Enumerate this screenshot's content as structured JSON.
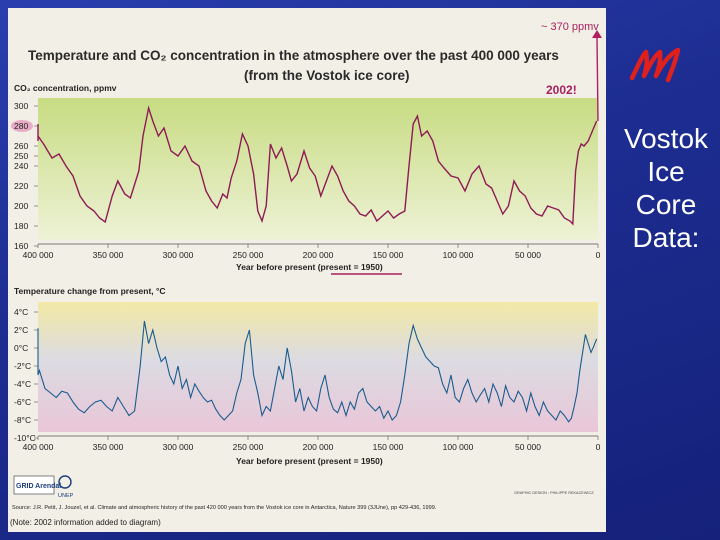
{
  "slide": {
    "title_lines": [
      "Vostok",
      "Ice",
      "Core",
      "Data:"
    ],
    "logo_icon": "red-m-logo-icon"
  },
  "figure": {
    "title_line1": "Temperature and CO₂ concentration in the atmosphere over the past 400 000 years",
    "title_line2": "(from the Vostok ice core)",
    "annotation_ppmv": "~ 370 ppmv",
    "annotation_2002": "2002!",
    "source_text": "Source: J.R. Petit, J. Jouzel, et al. Climate and atmospheric history of the past 420 000 years from the Vostok ice core in Antarctica, Nature 399 (3JUne), pp 429-436, 1999.",
    "note_text": "(Note: 2002 information added to diagram)",
    "credit_text": "GRAPHIC DESIGN : PHILIPPE REKACEWICZ",
    "grid_logo_text": "GRID Arendal",
    "unep_logo_text": "UNEP"
  },
  "chart_data": [
    {
      "type": "line",
      "title": "",
      "ylabel": "CO₂ concentration, ppmv",
      "xlabel": "Year before present (present = 1950)",
      "xlim": [
        400000,
        0
      ],
      "ylim": [
        160,
        300
      ],
      "x_tick_labels": [
        "400 000",
        "350 000",
        "300 000",
        "250 000",
        "200 000",
        "150 000",
        "100 000",
        "50 000",
        "0"
      ],
      "x_ticks": [
        400000,
        350000,
        300000,
        250000,
        200000,
        150000,
        100000,
        50000,
        0
      ],
      "y_tick_labels": [
        "160",
        "180",
        "200",
        "220",
        "240",
        "250",
        "260",
        "280",
        "300"
      ],
      "y_ticks": [
        160,
        180,
        200,
        220,
        240,
        250,
        260,
        280,
        300
      ],
      "highlight_tick": "280",
      "colors": {
        "line": "#8e1b55",
        "band_top": "#c9dd86",
        "band_bottom": "#e3ecc0",
        "highlight": "#e8a0c0"
      },
      "series": [
        {
          "x": [
            415000,
            410000,
            402000,
            396000,
            390000,
            385000,
            380000,
            375000,
            370000,
            365000,
            360000,
            356000,
            352000,
            347000,
            343000,
            338000,
            334000,
            328000,
            325000,
            321000,
            318000,
            314000,
            310000,
            305000,
            300000,
            295000,
            290000,
            285000,
            280000,
            276000,
            272000,
            268000,
            265000,
            262000,
            258000,
            254000,
            250000,
            246000,
            243000,
            240000,
            237000,
            234000,
            230000,
            226000,
            222000,
            219000,
            215000,
            210000,
            206000,
            202000,
            198000,
            194000,
            190000,
            186000,
            182000,
            178000,
            174000,
            170000,
            166000,
            162000,
            158000,
            154000,
            150000,
            146000,
            142000,
            138000,
            135000,
            132000,
            129000,
            126000,
            122000,
            118000,
            114000,
            110000,
            105000,
            100000,
            95000,
            90000,
            85000,
            80000,
            76000,
            72000,
            68000,
            64000,
            60000,
            56000,
            52000,
            48000,
            44000,
            40000,
            36000,
            32000,
            28000,
            24000,
            20000,
            18000,
            16000,
            14000,
            12000,
            10000,
            7000,
            4000,
            1000
          ],
          "y": [
            265,
            282,
            270,
            262,
            248,
            252,
            240,
            230,
            210,
            200,
            195,
            188,
            184,
            210,
            225,
            212,
            208,
            235,
            270,
            298,
            285,
            270,
            278,
            255,
            250,
            260,
            245,
            240,
            215,
            205,
            198,
            212,
            208,
            228,
            245,
            272,
            260,
            232,
            195,
            185,
            200,
            262,
            248,
            258,
            240,
            225,
            232,
            255,
            238,
            230,
            210,
            225,
            240,
            230,
            215,
            205,
            200,
            192,
            190,
            196,
            185,
            190,
            195,
            188,
            192,
            195,
            240,
            282,
            290,
            270,
            275,
            265,
            245,
            238,
            230,
            228,
            215,
            232,
            240,
            222,
            218,
            205,
            192,
            200,
            225,
            215,
            210,
            198,
            192,
            190,
            200,
            198,
            196,
            188,
            185,
            182,
            235,
            255,
            262,
            260,
            265,
            275,
            285
          ]
        },
        {
          "name": "2002",
          "x": [
            -100,
            -52
          ],
          "y": [
            285,
            370
          ]
        }
      ]
    },
    {
      "type": "line",
      "title": "",
      "ylabel": "Temperature change from present, °C",
      "xlabel": "Year before present (present = 1950)",
      "xlim": [
        400000,
        0
      ],
      "ylim": [
        -10,
        4
      ],
      "x_tick_labels": [
        "400 000",
        "350 000",
        "300 000",
        "250 000",
        "200 000",
        "150 000",
        "100 000",
        "50 000",
        "0"
      ],
      "x_ticks": [
        400000,
        350000,
        300000,
        250000,
        200000,
        150000,
        100000,
        50000,
        0
      ],
      "y_tick_labels": [
        "4°C",
        "2°C",
        "0°C",
        "-2°C",
        "-4°C",
        "-6°C",
        "-8°C",
        "-10°C"
      ],
      "y_ticks": [
        4,
        2,
        0,
        -2,
        -4,
        -6,
        -8,
        -10
      ],
      "colors": {
        "line": "#1a5c8e",
        "band_top": "#f3ecb0",
        "band_mid": "#dcd8e6",
        "band_bottom": "#e8c9d9"
      },
      "series": [
        {
          "x": [
            415000,
            411000,
            407000,
            403000,
            399000,
            395000,
            391000,
            387000,
            383000,
            379000,
            375000,
            371000,
            367000,
            363000,
            359000,
            355000,
            351000,
            347000,
            343000,
            339000,
            335000,
            331000,
            327000,
            324000,
            321000,
            318000,
            315000,
            312000,
            309000,
            306000,
            303000,
            300000,
            297000,
            294000,
            291000,
            288000,
            285000,
            282000,
            279000,
            276000,
            273000,
            270000,
            267000,
            264000,
            261000,
            258000,
            255000,
            252000,
            249000,
            246000,
            243000,
            240000,
            237000,
            234000,
            231000,
            228000,
            225000,
            222000,
            219000,
            216000,
            213000,
            210000,
            207000,
            204000,
            201000,
            198000,
            195000,
            192000,
            189000,
            186000,
            183000,
            180000,
            177000,
            174000,
            171000,
            168000,
            165000,
            162000,
            159000,
            156000,
            153000,
            150000,
            147000,
            144000,
            141000,
            138000,
            135000,
            132000,
            129000,
            126000,
            123000,
            120000,
            117000,
            114000,
            111000,
            108000,
            105000,
            102000,
            99000,
            96000,
            93000,
            90000,
            87000,
            84000,
            81000,
            78000,
            75000,
            72000,
            69000,
            66000,
            63000,
            60000,
            57000,
            54000,
            51000,
            48000,
            45000,
            42000,
            39000,
            36000,
            33000,
            30000,
            27000,
            24000,
            21000,
            19000,
            17000,
            15000,
            13000,
            11000,
            9000,
            7000,
            5000,
            3000,
            1000
          ],
          "y": [
            2.2,
            0.0,
            -2.0,
            -3.0,
            -2.5,
            -4.5,
            -5.0,
            -5.5,
            -4.8,
            -5.0,
            -6.0,
            -6.8,
            -7.2,
            -6.5,
            -6.0,
            -5.8,
            -6.5,
            -7.0,
            -5.5,
            -6.5,
            -7.5,
            -7.0,
            -2.0,
            3.0,
            0.5,
            2.0,
            0.0,
            -1.5,
            -1.0,
            -3.0,
            -4.0,
            -2.0,
            -4.5,
            -3.5,
            -5.5,
            -4.0,
            -4.8,
            -5.5,
            -6.0,
            -5.8,
            -6.8,
            -7.5,
            -8.0,
            -7.5,
            -7.0,
            -5.0,
            -3.5,
            0.5,
            2.0,
            -3.0,
            -5.0,
            -7.5,
            -6.5,
            -7.0,
            -4.5,
            -2.0,
            -3.5,
            0.0,
            -2.5,
            -6.0,
            -4.5,
            -7.0,
            -5.5,
            -6.5,
            -7.0,
            -4.5,
            -3.0,
            -5.5,
            -6.8,
            -7.2,
            -6.0,
            -7.5,
            -6.0,
            -6.8,
            -5.0,
            -4.5,
            -6.0,
            -6.5,
            -7.0,
            -6.5,
            -7.8,
            -7.0,
            -8.0,
            -7.5,
            -6.0,
            -3.0,
            0.5,
            2.5,
            1.0,
            0.0,
            -1.0,
            -1.5,
            -2.0,
            -2.2,
            -4.0,
            -5.0,
            -3.0,
            -5.5,
            -6.0,
            -4.5,
            -3.5,
            -5.0,
            -6.0,
            -5.2,
            -4.5,
            -6.0,
            -4.0,
            -5.0,
            -6.5,
            -4.2,
            -5.5,
            -6.0,
            -4.8,
            -5.5,
            -7.0,
            -5.0,
            -6.5,
            -7.5,
            -6.0,
            -7.0,
            -7.5,
            -8.0,
            -7.0,
            -7.5,
            -8.2,
            -7.8,
            -6.5,
            -5.0,
            -2.5,
            -0.5,
            1.5,
            0.5,
            -0.5,
            0.2,
            1.0
          ]
        }
      ]
    }
  ]
}
